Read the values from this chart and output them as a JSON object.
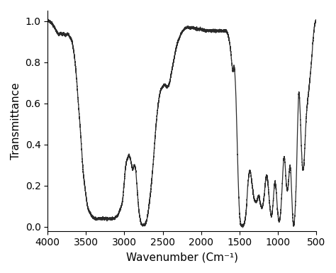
{
  "xlabel": "Wavenumber (Cm⁻¹)",
  "ylabel": "Transmittance",
  "xlim_left": 4000,
  "xlim_right": 500,
  "ylim": [
    -0.02,
    1.05
  ],
  "xticks": [
    4000,
    3500,
    3000,
    2500,
    2000,
    1500,
    1000,
    500
  ],
  "yticks": [
    0.0,
    0.2,
    0.4,
    0.6,
    0.8,
    1.0
  ],
  "line_color": "#2a2a2a",
  "line_width": 0.9,
  "background_color": "#ffffff",
  "xlabel_fontsize": 11,
  "ylabel_fontsize": 11,
  "tick_fontsize": 10,
  "key_points": [
    [
      4000,
      1.0
    ],
    [
      3950,
      0.99
    ],
    [
      3900,
      0.96
    ],
    [
      3870,
      0.94
    ],
    [
      3850,
      0.935
    ],
    [
      3830,
      0.94
    ],
    [
      3810,
      0.935
    ],
    [
      3790,
      0.94
    ],
    [
      3770,
      0.93
    ],
    [
      3750,
      0.935
    ],
    [
      3730,
      0.935
    ],
    [
      3710,
      0.92
    ],
    [
      3690,
      0.91
    ],
    [
      3660,
      0.85
    ],
    [
      3630,
      0.75
    ],
    [
      3600,
      0.6
    ],
    [
      3570,
      0.45
    ],
    [
      3540,
      0.28
    ],
    [
      3510,
      0.18
    ],
    [
      3480,
      0.1
    ],
    [
      3450,
      0.07
    ],
    [
      3420,
      0.05
    ],
    [
      3400,
      0.045
    ],
    [
      3380,
      0.04
    ],
    [
      3350,
      0.04
    ],
    [
      3320,
      0.04
    ],
    [
      3300,
      0.04
    ],
    [
      3270,
      0.04
    ],
    [
      3250,
      0.04
    ],
    [
      3220,
      0.04
    ],
    [
      3200,
      0.04
    ],
    [
      3180,
      0.04
    ],
    [
      3160,
      0.04
    ],
    [
      3140,
      0.04
    ],
    [
      3120,
      0.045
    ],
    [
      3100,
      0.05
    ],
    [
      3080,
      0.06
    ],
    [
      3060,
      0.08
    ],
    [
      3040,
      0.1
    ],
    [
      3020,
      0.14
    ],
    [
      3010,
      0.18
    ],
    [
      3000,
      0.22
    ],
    [
      2990,
      0.27
    ],
    [
      2980,
      0.3
    ],
    [
      2970,
      0.32
    ],
    [
      2960,
      0.33
    ],
    [
      2950,
      0.34
    ],
    [
      2940,
      0.35
    ],
    [
      2930,
      0.34
    ],
    [
      2920,
      0.33
    ],
    [
      2910,
      0.31
    ],
    [
      2900,
      0.29
    ],
    [
      2890,
      0.28
    ],
    [
      2880,
      0.29
    ],
    [
      2870,
      0.3
    ],
    [
      2860,
      0.29
    ],
    [
      2850,
      0.27
    ],
    [
      2840,
      0.22
    ],
    [
      2830,
      0.17
    ],
    [
      2820,
      0.12
    ],
    [
      2810,
      0.08
    ],
    [
      2800,
      0.05
    ],
    [
      2790,
      0.03
    ],
    [
      2780,
      0.015
    ],
    [
      2770,
      0.01
    ],
    [
      2760,
      0.01
    ],
    [
      2750,
      0.01
    ],
    [
      2740,
      0.01
    ],
    [
      2730,
      0.01
    ],
    [
      2720,
      0.02
    ],
    [
      2710,
      0.03
    ],
    [
      2700,
      0.05
    ],
    [
      2690,
      0.07
    ],
    [
      2680,
      0.1
    ],
    [
      2670,
      0.13
    ],
    [
      2660,
      0.16
    ],
    [
      2650,
      0.2
    ],
    [
      2640,
      0.24
    ],
    [
      2630,
      0.28
    ],
    [
      2620,
      0.33
    ],
    [
      2610,
      0.38
    ],
    [
      2600,
      0.43
    ],
    [
      2590,
      0.48
    ],
    [
      2580,
      0.52
    ],
    [
      2570,
      0.56
    ],
    [
      2560,
      0.59
    ],
    [
      2550,
      0.62
    ],
    [
      2540,
      0.64
    ],
    [
      2530,
      0.66
    ],
    [
      2520,
      0.67
    ],
    [
      2510,
      0.675
    ],
    [
      2500,
      0.68
    ],
    [
      2490,
      0.685
    ],
    [
      2480,
      0.69
    ],
    [
      2470,
      0.69
    ],
    [
      2460,
      0.685
    ],
    [
      2450,
      0.68
    ],
    [
      2440,
      0.68
    ],
    [
      2430,
      0.685
    ],
    [
      2420,
      0.69
    ],
    [
      2410,
      0.7
    ],
    [
      2400,
      0.72
    ],
    [
      2390,
      0.74
    ],
    [
      2380,
      0.76
    ],
    [
      2370,
      0.78
    ],
    [
      2360,
      0.8
    ],
    [
      2350,
      0.82
    ],
    [
      2340,
      0.84
    ],
    [
      2330,
      0.86
    ],
    [
      2320,
      0.875
    ],
    [
      2310,
      0.89
    ],
    [
      2300,
      0.9
    ],
    [
      2290,
      0.91
    ],
    [
      2280,
      0.92
    ],
    [
      2270,
      0.93
    ],
    [
      2260,
      0.94
    ],
    [
      2250,
      0.945
    ],
    [
      2240,
      0.95
    ],
    [
      2230,
      0.955
    ],
    [
      2220,
      0.96
    ],
    [
      2210,
      0.963
    ],
    [
      2200,
      0.965
    ],
    [
      2190,
      0.967
    ],
    [
      2180,
      0.968
    ],
    [
      2170,
      0.968
    ],
    [
      2160,
      0.967
    ],
    [
      2150,
      0.966
    ],
    [
      2140,
      0.966
    ],
    [
      2130,
      0.967
    ],
    [
      2120,
      0.968
    ],
    [
      2110,
      0.967
    ],
    [
      2100,
      0.966
    ],
    [
      2090,
      0.965
    ],
    [
      2080,
      0.964
    ],
    [
      2070,
      0.963
    ],
    [
      2060,
      0.962
    ],
    [
      2050,
      0.961
    ],
    [
      2040,
      0.96
    ],
    [
      2030,
      0.959
    ],
    [
      2020,
      0.96
    ],
    [
      2010,
      0.961
    ],
    [
      2000,
      0.96
    ],
    [
      1990,
      0.958
    ],
    [
      1980,
      0.957
    ],
    [
      1970,
      0.956
    ],
    [
      1960,
      0.955
    ],
    [
      1950,
      0.954
    ],
    [
      1940,
      0.953
    ],
    [
      1930,
      0.952
    ],
    [
      1920,
      0.952
    ],
    [
      1910,
      0.952
    ],
    [
      1900,
      0.952
    ],
    [
      1890,
      0.952
    ],
    [
      1880,
      0.952
    ],
    [
      1870,
      0.952
    ],
    [
      1860,
      0.952
    ],
    [
      1850,
      0.952
    ],
    [
      1840,
      0.952
    ],
    [
      1830,
      0.952
    ],
    [
      1820,
      0.952
    ],
    [
      1810,
      0.952
    ],
    [
      1800,
      0.952
    ],
    [
      1790,
      0.952
    ],
    [
      1780,
      0.952
    ],
    [
      1770,
      0.952
    ],
    [
      1760,
      0.952
    ],
    [
      1750,
      0.952
    ],
    [
      1740,
      0.952
    ],
    [
      1730,
      0.952
    ],
    [
      1720,
      0.952
    ],
    [
      1710,
      0.952
    ],
    [
      1700,
      0.952
    ],
    [
      1690,
      0.952
    ],
    [
      1680,
      0.952
    ],
    [
      1670,
      0.952
    ],
    [
      1660,
      0.945
    ],
    [
      1650,
      0.935
    ],
    [
      1640,
      0.92
    ],
    [
      1630,
      0.9
    ],
    [
      1620,
      0.875
    ],
    [
      1610,
      0.84
    ],
    [
      1600,
      0.8
    ],
    [
      1595,
      0.78
    ],
    [
      1590,
      0.76
    ],
    [
      1585,
      0.755
    ],
    [
      1580,
      0.76
    ],
    [
      1575,
      0.775
    ],
    [
      1570,
      0.78
    ],
    [
      1565,
      0.77
    ],
    [
      1560,
      0.75
    ],
    [
      1555,
      0.72
    ],
    [
      1550,
      0.68
    ],
    [
      1545,
      0.63
    ],
    [
      1540,
      0.57
    ],
    [
      1535,
      0.5
    ],
    [
      1530,
      0.43
    ],
    [
      1525,
      0.36
    ],
    [
      1520,
      0.29
    ],
    [
      1515,
      0.22
    ],
    [
      1510,
      0.17
    ],
    [
      1505,
      0.12
    ],
    [
      1500,
      0.08
    ],
    [
      1495,
      0.05
    ],
    [
      1490,
      0.03
    ],
    [
      1485,
      0.015
    ],
    [
      1480,
      0.01
    ],
    [
      1475,
      0.008
    ],
    [
      1470,
      0.007
    ],
    [
      1465,
      0.007
    ],
    [
      1460,
      0.007
    ],
    [
      1455,
      0.007
    ],
    [
      1450,
      0.008
    ],
    [
      1445,
      0.01
    ],
    [
      1440,
      0.013
    ],
    [
      1435,
      0.018
    ],
    [
      1430,
      0.025
    ],
    [
      1425,
      0.035
    ],
    [
      1420,
      0.048
    ],
    [
      1415,
      0.065
    ],
    [
      1410,
      0.085
    ],
    [
      1405,
      0.11
    ],
    [
      1400,
      0.14
    ],
    [
      1395,
      0.17
    ],
    [
      1390,
      0.2
    ],
    [
      1385,
      0.22
    ],
    [
      1380,
      0.24
    ],
    [
      1375,
      0.255
    ],
    [
      1370,
      0.265
    ],
    [
      1365,
      0.27
    ],
    [
      1360,
      0.27
    ],
    [
      1355,
      0.265
    ],
    [
      1350,
      0.255
    ],
    [
      1345,
      0.24
    ],
    [
      1340,
      0.225
    ],
    [
      1335,
      0.21
    ],
    [
      1330,
      0.195
    ],
    [
      1325,
      0.18
    ],
    [
      1320,
      0.165
    ],
    [
      1315,
      0.15
    ],
    [
      1310,
      0.14
    ],
    [
      1305,
      0.132
    ],
    [
      1300,
      0.128
    ],
    [
      1295,
      0.125
    ],
    [
      1290,
      0.122
    ],
    [
      1285,
      0.12
    ],
    [
      1280,
      0.12
    ],
    [
      1275,
      0.123
    ],
    [
      1270,
      0.128
    ],
    [
      1265,
      0.135
    ],
    [
      1260,
      0.142
    ],
    [
      1255,
      0.148
    ],
    [
      1250,
      0.15
    ],
    [
      1245,
      0.148
    ],
    [
      1240,
      0.142
    ],
    [
      1235,
      0.132
    ],
    [
      1230,
      0.12
    ],
    [
      1225,
      0.11
    ],
    [
      1220,
      0.102
    ],
    [
      1215,
      0.098
    ],
    [
      1210,
      0.095
    ],
    [
      1205,
      0.095
    ],
    [
      1200,
      0.098
    ],
    [
      1195,
      0.104
    ],
    [
      1190,
      0.112
    ],
    [
      1185,
      0.125
    ],
    [
      1180,
      0.14
    ],
    [
      1175,
      0.158
    ],
    [
      1170,
      0.178
    ],
    [
      1165,
      0.2
    ],
    [
      1160,
      0.22
    ],
    [
      1155,
      0.235
    ],
    [
      1150,
      0.245
    ],
    [
      1145,
      0.248
    ],
    [
      1140,
      0.245
    ],
    [
      1135,
      0.235
    ],
    [
      1130,
      0.22
    ],
    [
      1125,
      0.2
    ],
    [
      1120,
      0.178
    ],
    [
      1115,
      0.155
    ],
    [
      1110,
      0.13
    ],
    [
      1105,
      0.108
    ],
    [
      1100,
      0.088
    ],
    [
      1095,
      0.072
    ],
    [
      1090,
      0.06
    ],
    [
      1085,
      0.055
    ],
    [
      1080,
      0.055
    ],
    [
      1075,
      0.062
    ],
    [
      1070,
      0.075
    ],
    [
      1065,
      0.095
    ],
    [
      1060,
      0.118
    ],
    [
      1055,
      0.145
    ],
    [
      1050,
      0.172
    ],
    [
      1045,
      0.195
    ],
    [
      1040,
      0.21
    ],
    [
      1035,
      0.215
    ],
    [
      1030,
      0.21
    ],
    [
      1025,
      0.195
    ],
    [
      1020,
      0.175
    ],
    [
      1015,
      0.15
    ],
    [
      1010,
      0.122
    ],
    [
      1005,
      0.095
    ],
    [
      1000,
      0.072
    ],
    [
      995,
      0.052
    ],
    [
      990,
      0.038
    ],
    [
      985,
      0.03
    ],
    [
      980,
      0.028
    ],
    [
      975,
      0.032
    ],
    [
      970,
      0.042
    ],
    [
      965,
      0.058
    ],
    [
      960,
      0.08
    ],
    [
      955,
      0.108
    ],
    [
      950,
      0.14
    ],
    [
      945,
      0.175
    ],
    [
      940,
      0.212
    ],
    [
      935,
      0.25
    ],
    [
      930,
      0.285
    ],
    [
      925,
      0.315
    ],
    [
      920,
      0.335
    ],
    [
      915,
      0.34
    ],
    [
      910,
      0.33
    ],
    [
      905,
      0.31
    ],
    [
      900,
      0.28
    ],
    [
      895,
      0.25
    ],
    [
      890,
      0.222
    ],
    [
      885,
      0.2
    ],
    [
      880,
      0.185
    ],
    [
      875,
      0.178
    ],
    [
      870,
      0.182
    ],
    [
      865,
      0.195
    ],
    [
      860,
      0.215
    ],
    [
      855,
      0.24
    ],
    [
      850,
      0.265
    ],
    [
      845,
      0.285
    ],
    [
      840,
      0.295
    ],
    [
      835,
      0.29
    ],
    [
      830,
      0.27
    ],
    [
      825,
      0.235
    ],
    [
      820,
      0.19
    ],
    [
      815,
      0.14
    ],
    [
      810,
      0.09
    ],
    [
      805,
      0.05
    ],
    [
      800,
      0.022
    ],
    [
      795,
      0.01
    ],
    [
      790,
      0.01
    ],
    [
      785,
      0.02
    ],
    [
      780,
      0.04
    ],
    [
      775,
      0.068
    ],
    [
      770,
      0.105
    ],
    [
      765,
      0.148
    ],
    [
      760,
      0.2
    ],
    [
      755,
      0.265
    ],
    [
      750,
      0.34
    ],
    [
      745,
      0.42
    ],
    [
      740,
      0.5
    ],
    [
      735,
      0.57
    ],
    [
      730,
      0.625
    ],
    [
      725,
      0.65
    ],
    [
      720,
      0.648
    ],
    [
      715,
      0.625
    ],
    [
      710,
      0.585
    ],
    [
      705,
      0.535
    ],
    [
      700,
      0.482
    ],
    [
      695,
      0.428
    ],
    [
      690,
      0.378
    ],
    [
      685,
      0.335
    ],
    [
      680,
      0.302
    ],
    [
      675,
      0.282
    ],
    [
      670,
      0.275
    ],
    [
      665,
      0.28
    ],
    [
      660,
      0.298
    ],
    [
      655,
      0.325
    ],
    [
      650,
      0.36
    ],
    [
      645,
      0.4
    ],
    [
      640,
      0.442
    ],
    [
      635,
      0.482
    ],
    [
      630,
      0.518
    ],
    [
      625,
      0.548
    ],
    [
      620,
      0.572
    ],
    [
      615,
      0.592
    ],
    [
      610,
      0.61
    ],
    [
      605,
      0.628
    ],
    [
      600,
      0.645
    ],
    [
      595,
      0.662
    ],
    [
      590,
      0.68
    ],
    [
      585,
      0.698
    ],
    [
      580,
      0.718
    ],
    [
      575,
      0.738
    ],
    [
      570,
      0.758
    ],
    [
      565,
      0.778
    ],
    [
      560,
      0.8
    ],
    [
      555,
      0.825
    ],
    [
      550,
      0.852
    ],
    [
      545,
      0.878
    ],
    [
      540,
      0.902
    ],
    [
      535,
      0.925
    ],
    [
      530,
      0.945
    ],
    [
      525,
      0.962
    ],
    [
      520,
      0.975
    ],
    [
      515,
      0.985
    ],
    [
      510,
      0.993
    ],
    [
      505,
      0.998
    ],
    [
      500,
      1.0
    ]
  ]
}
